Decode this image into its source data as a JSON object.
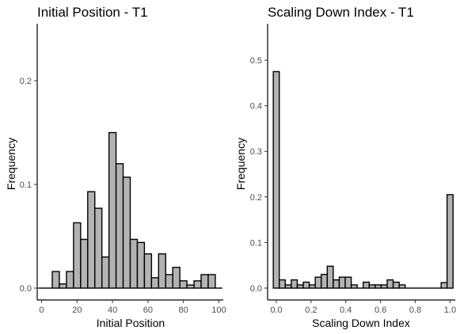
{
  "chart_data": [
    {
      "type": "bar",
      "title": "Initial Position - T1",
      "xlabel": "Initial Position",
      "ylabel": "Frequency",
      "xlim": [
        -2.5,
        102.5
      ],
      "ylim": [
        0,
        0.255
      ],
      "bin_width": 4,
      "x_ticks": [
        0,
        20,
        40,
        60,
        80,
        100
      ],
      "x_tick_labels": [
        "0",
        "20",
        "40",
        "60",
        "80",
        "100"
      ],
      "y_ticks": [
        0,
        0.1,
        0.2
      ],
      "y_tick_labels": [
        "0.0",
        "0.1",
        "0.2"
      ],
      "bin_centers": [
        0,
        4,
        8,
        12,
        16,
        20,
        24,
        28,
        32,
        36,
        40,
        44,
        48,
        52,
        56,
        60,
        64,
        68,
        72,
        76,
        80,
        84,
        88,
        92,
        96,
        100
      ],
      "values": [
        0,
        0,
        0.016,
        0.004,
        0.016,
        0.063,
        0.047,
        0.093,
        0.077,
        0.03,
        0.15,
        0.12,
        0.107,
        0.047,
        0.044,
        0.033,
        0.01,
        0.033,
        0.013,
        0.02,
        0.007,
        0.003,
        0.007,
        0.013,
        0.013,
        0
      ],
      "grid": false,
      "legend": "none"
    },
    {
      "type": "bar",
      "title": "Scaling Down Index - T1",
      "xlabel": "Scaling Down Index",
      "ylabel": "Frequency",
      "xlim": [
        -0.05,
        1.03
      ],
      "ylim": [
        0,
        0.58
      ],
      "bin_width": 0.0345,
      "x_ticks": [
        0,
        0.2,
        0.4,
        0.6,
        0.8,
        1.0
      ],
      "x_tick_labels": [
        "0.0",
        "0.2",
        "0.4",
        "0.6",
        "0.8",
        "1.0"
      ],
      "y_ticks": [
        0,
        0.1,
        0.2,
        0.3,
        0.4,
        0.5
      ],
      "y_tick_labels": [
        "0.0",
        "0.1",
        "0.2",
        "0.3",
        "0.4",
        "0.5"
      ],
      "bin_centers": [
        0,
        0.0345,
        0.069,
        0.1035,
        0.138,
        0.1725,
        0.207,
        0.2415,
        0.276,
        0.3105,
        0.345,
        0.3795,
        0.414,
        0.4485,
        0.483,
        0.5175,
        0.552,
        0.5865,
        0.621,
        0.6555,
        0.69,
        0.7245,
        0.759,
        0.7935,
        0.828,
        0.8625,
        0.897,
        0.9315,
        0.966,
        1.0
      ],
      "values": [
        0.475,
        0.018,
        0.007,
        0.018,
        0.007,
        0.013,
        0.007,
        0.024,
        0.03,
        0.048,
        0.018,
        0.024,
        0.024,
        0.007,
        0,
        0.013,
        0.007,
        0.007,
        0.007,
        0.018,
        0.013,
        0.007,
        0,
        0,
        0,
        0,
        0,
        0,
        0.012,
        0.205
      ],
      "grid": false,
      "legend": "none"
    }
  ]
}
